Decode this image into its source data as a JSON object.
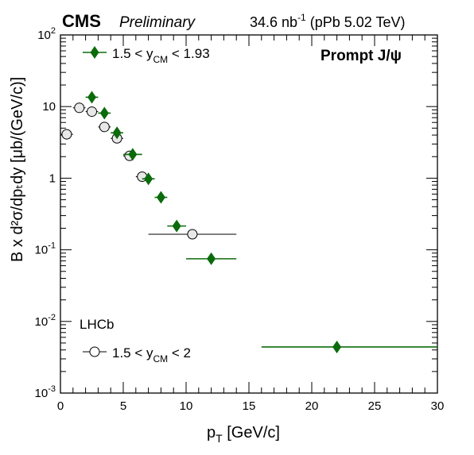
{
  "header": {
    "experiment": "CMS",
    "status": "Preliminary",
    "lumi_value": "34.6 nb",
    "lumi_exp": "-1",
    "lumi_rest": " (pPb 5.02 TeV)"
  },
  "tag": "Prompt J/ψ",
  "legend": {
    "cms_pre": "1.5 < y",
    "cms_sub": "CM",
    "cms_post": " < 1.93",
    "lhcb_title": "LHCb",
    "lhcb_pre": "1.5 < y",
    "lhcb_sub": "CM",
    "lhcb_post": " < 2"
  },
  "axes": {
    "xlabel_main": "p",
    "xlabel_sub": "T",
    "xlabel_rest": " [GeV/c]",
    "ylabel": "B x d²σ/dpₜdy [μb/(GeV/c)]"
  },
  "chart_data": {
    "type": "scatter",
    "xlim": [
      0,
      30
    ],
    "ylim": [
      0.001,
      100
    ],
    "yscale": "log",
    "x_ticks": [
      0,
      5,
      10,
      15,
      20,
      25,
      30
    ],
    "y_ticks": [
      {
        "value": 0.001,
        "base": "10",
        "exp": "-3"
      },
      {
        "value": 0.01,
        "base": "10",
        "exp": "-2"
      },
      {
        "value": 0.1,
        "base": "10",
        "exp": "-1"
      },
      {
        "value": 1,
        "base": "1",
        "exp": ""
      },
      {
        "value": 10,
        "base": "10",
        "exp": ""
      },
      {
        "value": 100,
        "base": "10",
        "exp": "2"
      }
    ],
    "grid": false,
    "series": [
      {
        "name": "1.5 < yCM < 1.93",
        "experiment": "CMS",
        "marker": "diamond",
        "color": "#0b6b0b",
        "points": [
          {
            "x": 2.5,
            "xlo": 2.0,
            "xhi": 3.0,
            "y": 13.5
          },
          {
            "x": 3.5,
            "xlo": 3.0,
            "xhi": 4.0,
            "y": 8.1
          },
          {
            "x": 4.5,
            "xlo": 4.0,
            "xhi": 5.0,
            "y": 4.3
          },
          {
            "x": 5.75,
            "xlo": 5.0,
            "xhi": 6.5,
            "y": 2.15
          },
          {
            "x": 7.0,
            "xlo": 6.5,
            "xhi": 7.5,
            "y": 0.98
          },
          {
            "x": 8.0,
            "xlo": 7.5,
            "xhi": 8.5,
            "y": 0.54
          },
          {
            "x": 9.25,
            "xlo": 8.5,
            "xhi": 10.0,
            "y": 0.215
          },
          {
            "x": 12.0,
            "xlo": 10.0,
            "xhi": 14.0,
            "y": 0.075
          },
          {
            "x": 22.0,
            "xlo": 16.0,
            "xhi": 30.0,
            "y": 0.0044
          }
        ]
      },
      {
        "name": "1.5 < yCM < 2",
        "experiment": "LHCb",
        "marker": "open-circle",
        "color": "#000000",
        "points": [
          {
            "x": 0.5,
            "xlo": 0.0,
            "xhi": 1.0,
            "y": 4.1
          },
          {
            "x": 1.5,
            "xlo": 1.0,
            "xhi": 2.0,
            "y": 9.6
          },
          {
            "x": 2.5,
            "xlo": 2.0,
            "xhi": 3.0,
            "y": 8.5
          },
          {
            "x": 3.5,
            "xlo": 3.0,
            "xhi": 4.0,
            "y": 5.2
          },
          {
            "x": 4.5,
            "xlo": 4.0,
            "xhi": 5.0,
            "y": 3.6
          },
          {
            "x": 5.5,
            "xlo": 5.0,
            "xhi": 6.0,
            "y": 2.05
          },
          {
            "x": 6.5,
            "xlo": 6.0,
            "xhi": 7.0,
            "y": 1.05
          },
          {
            "x": 10.5,
            "xlo": 7.0,
            "xhi": 14.0,
            "y": 0.165
          }
        ]
      }
    ]
  }
}
